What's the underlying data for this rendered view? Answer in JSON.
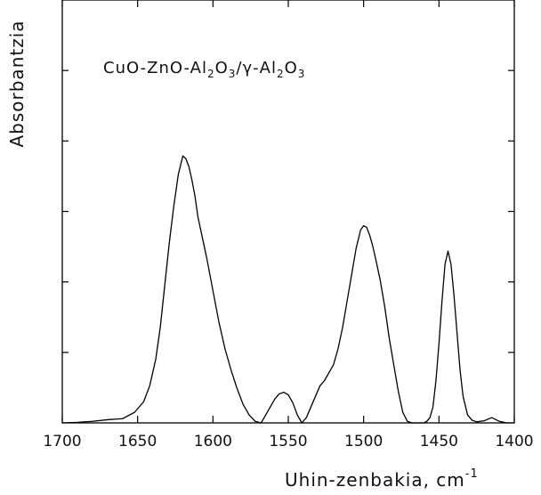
{
  "chart_data": {
    "type": "line",
    "title": "",
    "xlabel": "Uhin-zenbakia, cm",
    "xlabel_superscript": "-1",
    "ylabel": "Absorbantzia",
    "xlim": [
      1700,
      1400
    ],
    "x_reversed": true,
    "x_ticks": [
      1700,
      1650,
      1600,
      1550,
      1500,
      1450,
      1400
    ],
    "y_ticks_labeled": false,
    "y_tick_count": 6,
    "grid": false,
    "legend": "none",
    "annotation": {
      "parts": [
        "CuO-ZnO-Al",
        "2",
        "O",
        "3",
        "/γ-Al",
        "2",
        "O",
        "3"
      ]
    },
    "series": [
      {
        "x": [
          1700,
          1690,
          1680,
          1670,
          1660,
          1652,
          1646,
          1642,
          1638,
          1635,
          1632,
          1629,
          1626,
          1623,
          1620,
          1618,
          1616,
          1614,
          1612,
          1610,
          1607,
          1604,
          1600,
          1596,
          1592,
          1588,
          1584,
          1580,
          1576,
          1572,
          1568,
          1565,
          1562,
          1559,
          1556,
          1553,
          1550,
          1547,
          1544,
          1541,
          1538,
          1535,
          1532,
          1529,
          1526,
          1523,
          1520,
          1517,
          1514,
          1511,
          1508,
          1505,
          1502,
          1500,
          1498,
          1496,
          1494,
          1492,
          1489,
          1486,
          1483,
          1480,
          1477,
          1474,
          1471,
          1468,
          1465,
          1462,
          1460,
          1458,
          1456,
          1454,
          1452,
          1450,
          1448,
          1446,
          1444,
          1442,
          1440,
          1438,
          1436,
          1434,
          1431,
          1428,
          1425,
          1420,
          1415,
          1410,
          1405,
          1400
        ],
        "y": [
          0,
          0.1,
          0.3,
          0.6,
          0.8,
          2,
          4,
          7,
          12,
          18,
          26,
          34,
          41,
          47,
          50.5,
          50,
          48.5,
          46,
          43,
          39,
          35,
          31,
          25,
          19,
          14,
          10,
          6.5,
          3.5,
          1.5,
          0.3,
          0,
          1.5,
          3,
          4.5,
          5.5,
          5.8,
          5.3,
          3.8,
          1.5,
          0,
          1,
          3,
          5,
          7,
          8,
          9.5,
          11,
          14,
          18,
          23,
          28,
          33,
          36.5,
          37.3,
          37,
          35.5,
          33.5,
          31,
          27,
          22,
          16,
          11,
          6,
          2,
          0.3,
          0,
          0,
          0,
          0,
          0.3,
          1,
          3,
          8,
          15,
          23,
          30,
          32.5,
          30,
          24,
          17,
          10,
          5,
          1.5,
          0.5,
          0.2,
          0.4,
          1,
          0.3,
          0,
          0
        ]
      }
    ]
  }
}
